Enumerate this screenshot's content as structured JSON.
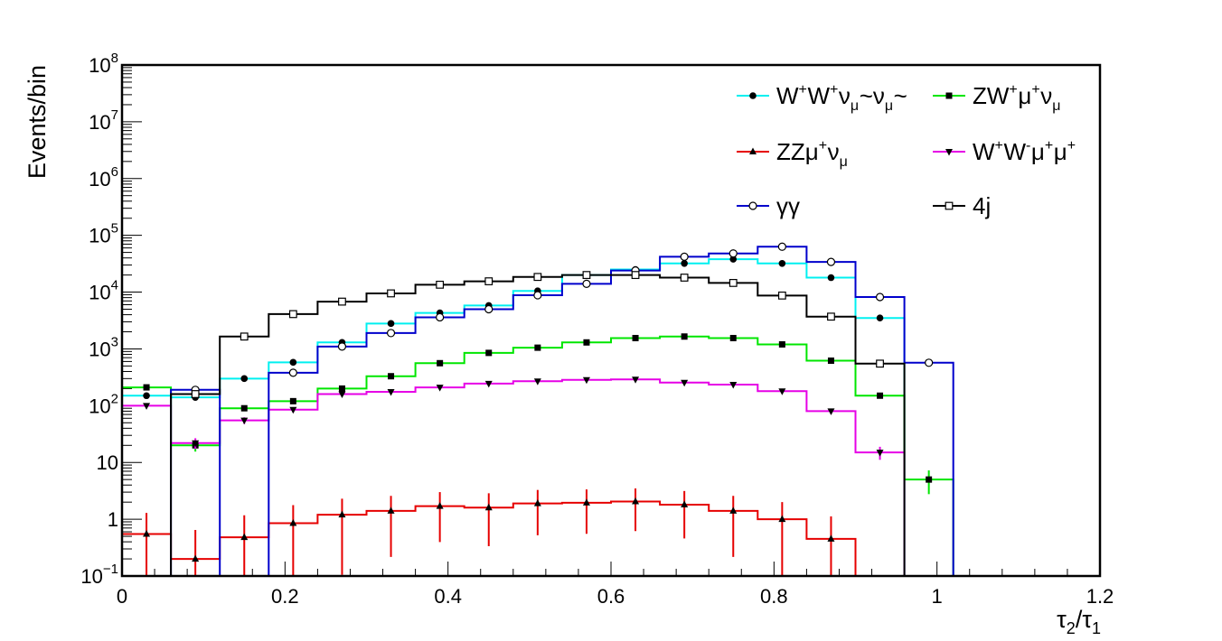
{
  "chart_data": {
    "type": "histogram",
    "title": "",
    "xlabel": {
      "base": "τ",
      "sub1": "2",
      "sep": "/τ",
      "sub2": "1"
    },
    "ylabel": "Events/bin",
    "yscale": "log",
    "xlim": [
      0,
      1.2
    ],
    "ylim": [
      0.1,
      100000000
    ],
    "grid": false,
    "legend_position": "top-right",
    "x_ticks": [
      "0",
      "0.2",
      "0.4",
      "0.6",
      "0.8",
      "1",
      "1.2"
    ],
    "y_ticks": [
      {
        "value": 0.1,
        "mantissa": "10",
        "exp": "−1"
      },
      {
        "value": 1,
        "mantissa": "1",
        "exp": ""
      },
      {
        "value": 10,
        "mantissa": "10",
        "exp": ""
      },
      {
        "value": 100,
        "mantissa": "10",
        "exp": "2"
      },
      {
        "value": 1000,
        "mantissa": "10",
        "exp": "3"
      },
      {
        "value": 10000,
        "mantissa": "10",
        "exp": "4"
      },
      {
        "value": 100000,
        "mantissa": "10",
        "exp": "5"
      },
      {
        "value": 1000000,
        "mantissa": "10",
        "exp": "6"
      },
      {
        "value": 10000000,
        "mantissa": "10",
        "exp": "7"
      },
      {
        "value": 100000000,
        "mantissa": "10",
        "exp": "8"
      }
    ],
    "bin_edges": [
      0,
      0.06,
      0.12,
      0.18,
      0.24,
      0.3,
      0.36,
      0.42,
      0.48,
      0.54,
      0.6,
      0.66,
      0.72,
      0.78,
      0.84,
      0.9,
      0.96,
      1.02
    ],
    "series": [
      {
        "name": "WWvv",
        "legend": [
          {
            "t": "W"
          },
          {
            "t": "+",
            "s": "sup"
          },
          {
            "t": "W"
          },
          {
            "t": "+",
            "s": "sup"
          },
          {
            "t": "ν"
          },
          {
            "t": "μ",
            "s": "sub"
          },
          {
            "t": "~ν"
          },
          {
            "t": "μ",
            "s": "sub"
          },
          {
            "t": "~"
          }
        ],
        "line_color": "#00f0f0",
        "marker": "filled-circle",
        "values": [
          150,
          140,
          300,
          580,
          1300,
          2800,
          4300,
          5800,
          10500,
          20000,
          25000,
          32000,
          38000,
          32000,
          18000,
          3500,
          0
        ]
      },
      {
        "name": "ZWuv",
        "legend": [
          {
            "t": "ZW"
          },
          {
            "t": "+",
            "s": "sup"
          },
          {
            "t": "μ"
          },
          {
            "t": "+",
            "s": "sup"
          },
          {
            "t": "ν"
          },
          {
            "t": "μ",
            "s": "sub"
          }
        ],
        "line_color": "#00e600",
        "marker": "filled-square",
        "values": [
          210,
          20,
          90,
          120,
          200,
          330,
          560,
          850,
          1050,
          1300,
          1550,
          1650,
          1550,
          1200,
          620,
          150,
          5
        ]
      },
      {
        "name": "ZZuv",
        "legend": [
          {
            "t": "ZZμ"
          },
          {
            "t": "+",
            "s": "sup"
          },
          {
            "t": "ν"
          },
          {
            "t": "μ",
            "s": "sub"
          }
        ],
        "line_color": "#e60000",
        "marker": "filled-triangle-up",
        "values": [
          0.55,
          0.2,
          0.48,
          0.85,
          1.2,
          1.4,
          1.7,
          1.6,
          1.9,
          1.95,
          2.05,
          1.8,
          1.4,
          1.0,
          0.45,
          0,
          0
        ]
      },
      {
        "name": "WWuu",
        "legend": [
          {
            "t": "W"
          },
          {
            "t": "+",
            "s": "sup"
          },
          {
            "t": "W"
          },
          {
            "t": "-",
            "s": "sup"
          },
          {
            "t": "μ"
          },
          {
            "t": "+",
            "s": "sup"
          },
          {
            "t": "μ"
          },
          {
            "t": "+",
            "s": "sup"
          }
        ],
        "line_color": "#e600e6",
        "marker": "filled-triangle-down",
        "values": [
          100,
          22,
          55,
          85,
          160,
          175,
          210,
          245,
          270,
          285,
          290,
          255,
          235,
          180,
          80,
          15,
          0
        ]
      },
      {
        "name": "gammagamma",
        "legend": [
          {
            "t": "γγ"
          }
        ],
        "line_color": "#0000cc",
        "marker": "open-circle",
        "values": [
          0,
          190,
          0,
          380,
          1100,
          1900,
          3600,
          5000,
          8800,
          14000,
          24000,
          42000,
          48000,
          63000,
          34000,
          8200,
          570
        ]
      },
      {
        "name": "4j",
        "legend": [
          {
            "t": "4j"
          }
        ],
        "line_color": "#000000",
        "marker": "open-square",
        "values": [
          0,
          160,
          1650,
          4100,
          6800,
          9500,
          13500,
          15500,
          18500,
          20000,
          20000,
          18000,
          14500,
          8700,
          3700,
          550,
          0
        ]
      }
    ]
  }
}
